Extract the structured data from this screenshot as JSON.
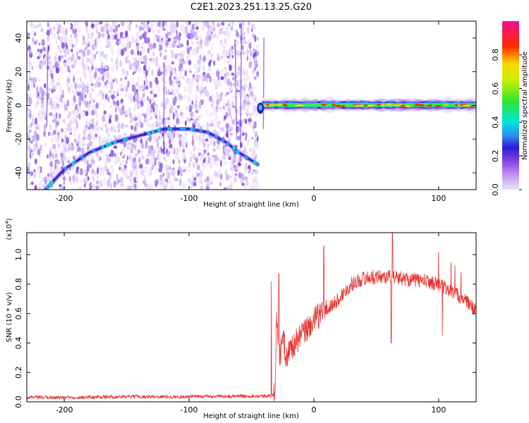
{
  "figure": {
    "title": "C2E1.2023.251.13.25.G20"
  },
  "chart_data": [
    {
      "type": "heatmap",
      "name": "spectrogram",
      "xlabel": "Height of straight line (km)",
      "ylabel": "Frequency (Hz)",
      "xlim": [
        -230,
        130
      ],
      "ylim": [
        -50,
        50
      ],
      "xticks": [
        -200,
        -100,
        0,
        100
      ],
      "yticks": [
        -40,
        -20,
        0,
        20,
        40
      ],
      "colorbar": {
        "label": "Normalized spectral amplitude",
        "range": [
          0,
          1
        ],
        "ticks": [
          0.0,
          0.2,
          0.4,
          0.6,
          0.8
        ]
      },
      "features": {
        "noise_region_x": [
          -230,
          -45
        ],
        "noise_cutoff_x": -45,
        "signal_band_x": [
          -45,
          130
        ],
        "signal_band_center_y": 0,
        "descending_trace": [
          {
            "x": -215,
            "y": -50
          },
          {
            "x": -200,
            "y": -38
          },
          {
            "x": -180,
            "y": -28
          },
          {
            "x": -160,
            "y": -22
          },
          {
            "x": -140,
            "y": -18
          },
          {
            "x": -120,
            "y": -14
          },
          {
            "x": -100,
            "y": -14
          },
          {
            "x": -85,
            "y": -16
          },
          {
            "x": -70,
            "y": -22
          },
          {
            "x": -60,
            "y": -28
          },
          {
            "x": -45,
            "y": -35
          }
        ]
      }
    },
    {
      "type": "line",
      "name": "snr",
      "xlabel": "Height of straight line (km)",
      "ylabel": "SNR (10 * v/v)",
      "y_multiplier": "(x10^4)",
      "xlim": [
        -230,
        130
      ],
      "ylim": [
        0,
        1.15
      ],
      "xticks": [
        -200,
        -100,
        0,
        100
      ],
      "yticks": [
        0.0,
        0.2,
        0.4,
        0.6,
        0.8,
        1.0
      ],
      "color": "#e8312f",
      "series": [
        {
          "points": [
            [
              -230,
              0.03
            ],
            [
              -200,
              0.03
            ],
            [
              -150,
              0.035
            ],
            [
              -100,
              0.035
            ],
            [
              -60,
              0.04
            ],
            [
              -35,
              0.04
            ],
            [
              -31,
              0.05
            ],
            [
              -30,
              0.6
            ],
            [
              -27,
              0.3
            ],
            [
              -25,
              0.45
            ],
            [
              -22,
              0.3
            ],
            [
              -20,
              0.35
            ],
            [
              -15,
              0.4
            ],
            [
              -10,
              0.45
            ],
            [
              -5,
              0.5
            ],
            [
              0,
              0.55
            ],
            [
              5,
              0.6
            ],
            [
              10,
              0.62
            ],
            [
              15,
              0.66
            ],
            [
              20,
              0.7
            ],
            [
              25,
              0.75
            ],
            [
              30,
              0.8
            ],
            [
              40,
              0.84
            ],
            [
              50,
              0.85
            ],
            [
              60,
              0.85
            ],
            [
              70,
              0.84
            ],
            [
              80,
              0.83
            ],
            [
              90,
              0.82
            ],
            [
              100,
              0.8
            ],
            [
              110,
              0.75
            ],
            [
              120,
              0.7
            ],
            [
              130,
              0.62
            ]
          ],
          "spikes": [
            [
              -28,
              0.87
            ],
            [
              -34,
              0.82
            ],
            [
              8,
              1.06
            ],
            [
              63,
              1.16
            ],
            [
              62,
              0.4
            ],
            [
              100,
              1.02
            ],
            [
              103,
              0.45
            ],
            [
              110,
              0.95
            ],
            [
              113,
              0.93
            ],
            [
              118,
              0.88
            ]
          ]
        }
      ]
    }
  ]
}
